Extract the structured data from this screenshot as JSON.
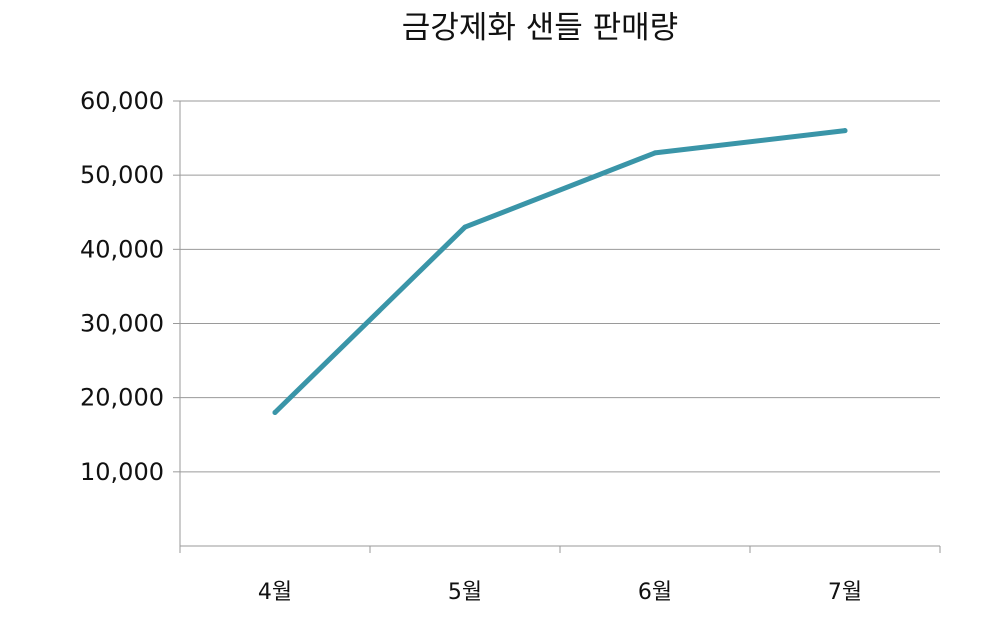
{
  "chart_data": {
    "type": "line",
    "title": "금강제화 샌들 판매량",
    "xlabel": "",
    "ylabel": "",
    "categories": [
      "4월",
      "5월",
      "6월",
      "7월"
    ],
    "series": [
      {
        "values": [
          18000,
          43000,
          53000,
          56000
        ],
        "color": "#3a95a8"
      }
    ],
    "ylim": [
      0,
      60000
    ],
    "yticks": [
      10000,
      20000,
      30000,
      40000,
      50000,
      60000
    ],
    "ytick_labels": [
      "10,000",
      "20,000",
      "30,000",
      "40,000",
      "50,000",
      "60,000"
    ],
    "grid": true,
    "legend": "none"
  }
}
